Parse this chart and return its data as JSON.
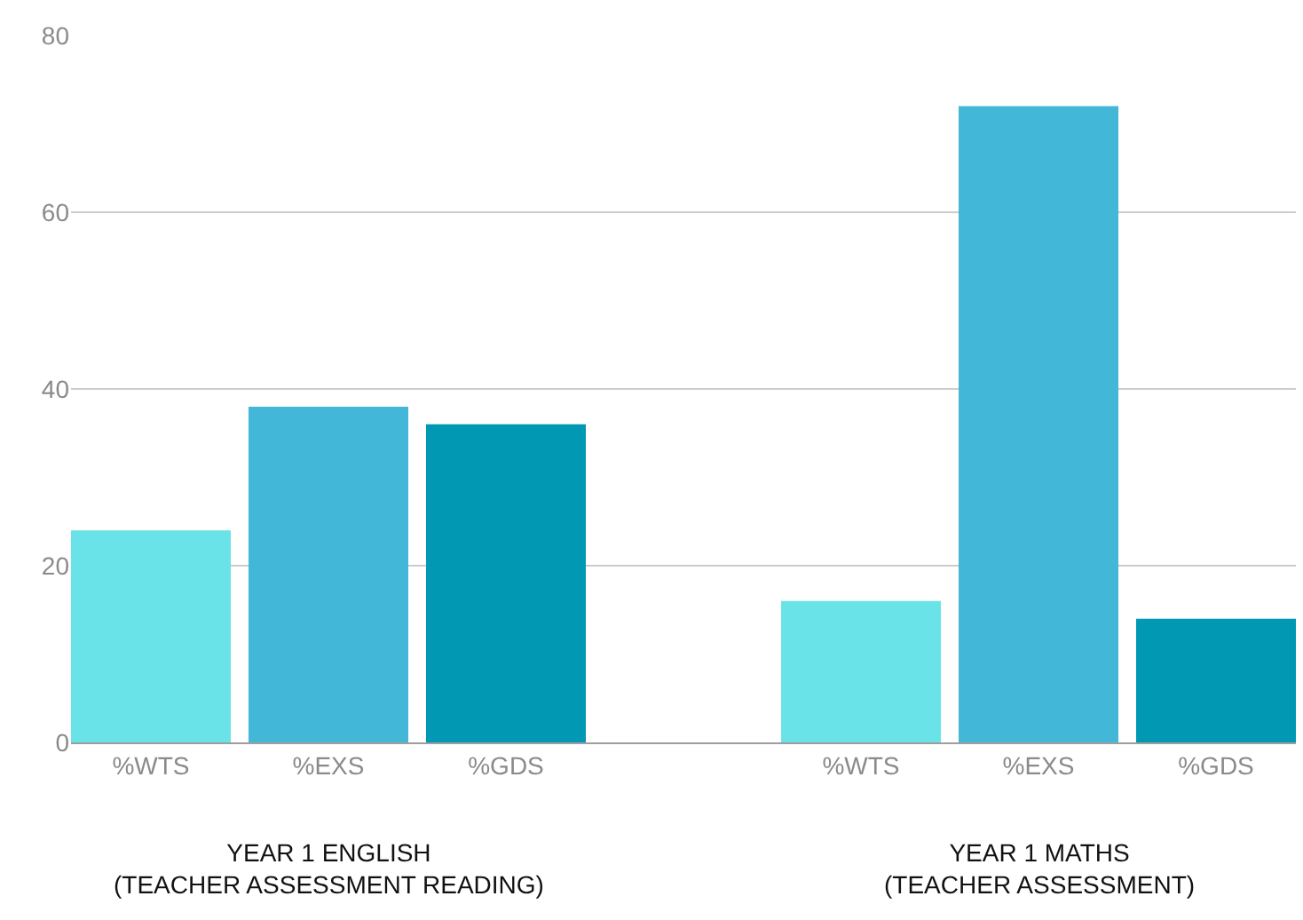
{
  "chart_data": {
    "type": "bar",
    "categories": [
      "%WTS",
      "%EXS",
      "%GDS",
      null,
      "%WTS",
      "%EXS",
      "%GDS"
    ],
    "values": [
      24,
      38,
      36,
      null,
      16,
      72,
      14
    ],
    "colors": [
      "#6ae3e8",
      "#42b7d7",
      "#0098b3",
      null,
      "#6ae3e8",
      "#42b7d7",
      "#0098b3"
    ],
    "ylim": [
      0,
      80
    ],
    "yticks": [
      0,
      20,
      40,
      60,
      80
    ],
    "grid": "y",
    "annotations": [
      "YEAR 1 ENGLISH\n(TEACHER ASSESSMENT READING)",
      "YEAR 1 MATHS\n(TEACHER ASSESSMENT)"
    ]
  }
}
